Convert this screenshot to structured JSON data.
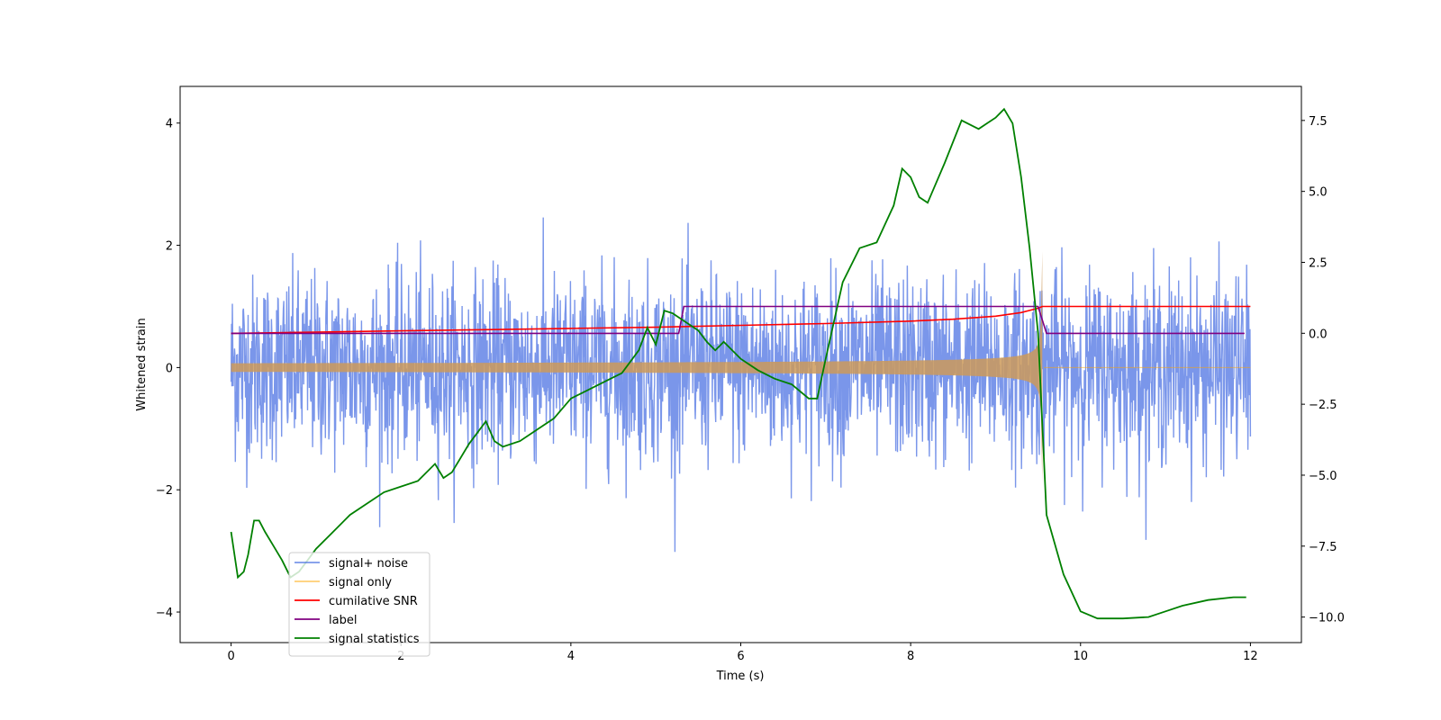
{
  "chart_data": {
    "type": "line",
    "title": "",
    "xlabel": "Time (s)",
    "ylabel": "Whitened strain",
    "y2label": "",
    "xlim": [
      -0.6,
      12.6
    ],
    "ylim": [
      -4.5,
      4.6
    ],
    "y2lim": [
      -10.9,
      8.7
    ],
    "x_ticks": [
      0,
      2,
      4,
      6,
      8,
      10,
      12
    ],
    "y_ticks": [
      -4,
      -2,
      0,
      2,
      4
    ],
    "y2_ticks": [
      -10.0,
      -7.5,
      -5.0,
      -2.5,
      0.0,
      2.5,
      5.0,
      7.5
    ],
    "y2_tick_labels": [
      "−10.0",
      "−7.5",
      "−5.0",
      "−2.5",
      "0.0",
      "2.5",
      "5.0",
      "7.5"
    ],
    "x_tick_labels": [
      "0",
      "2",
      "4",
      "6",
      "8",
      "10",
      "12"
    ],
    "y_tick_labels": [
      "−4",
      "−2",
      "0",
      "2",
      "4"
    ],
    "grid": false,
    "legend_position": "lower-left",
    "noise": {
      "std": 0.75,
      "x_start": 0,
      "x_end": 12
    },
    "chirp": {
      "t_merger": 9.55,
      "peak_amplitude": 1.9,
      "x_end": 12
    },
    "series": [
      {
        "name": "signal+ noise",
        "color": "#4169e1",
        "axis": "left"
      },
      {
        "name": "signal only",
        "color": "#ffa500",
        "axis": "left"
      },
      {
        "name": "cumilative SNR",
        "color": "#ff0000",
        "axis": "left",
        "x": [
          0,
          1,
          2,
          3,
          4,
          5,
          6,
          7,
          8,
          8.5,
          9,
          9.3,
          9.5,
          9.55,
          10,
          11,
          12
        ],
        "y": [
          0.56,
          0.58,
          0.6,
          0.62,
          0.64,
          0.66,
          0.69,
          0.72,
          0.76,
          0.79,
          0.84,
          0.9,
          0.97,
          1.0,
          1.0,
          1.0,
          1.0
        ]
      },
      {
        "name": "label",
        "color": "#800080",
        "axis": "left",
        "x": [
          0,
          5.27,
          5.33,
          9.5,
          9.6,
          11.93
        ],
        "y": [
          0.56,
          0.56,
          1.0,
          1.0,
          0.56,
          0.56
        ]
      },
      {
        "name": "signal statistics",
        "color": "#008000",
        "axis": "right",
        "x": [
          0,
          0.08,
          0.15,
          0.2,
          0.27,
          0.33,
          0.4,
          0.5,
          0.6,
          0.7,
          0.8,
          0.9,
          1.0,
          1.2,
          1.4,
          1.6,
          1.8,
          2.0,
          2.2,
          2.4,
          2.5,
          2.6,
          2.8,
          3.0,
          3.1,
          3.2,
          3.4,
          3.6,
          3.8,
          4.0,
          4.2,
          4.4,
          4.6,
          4.8,
          4.9,
          5.0,
          5.1,
          5.2,
          5.3,
          5.5,
          5.6,
          5.7,
          5.8,
          6.0,
          6.2,
          6.4,
          6.6,
          6.8,
          6.9,
          7.0,
          7.2,
          7.4,
          7.6,
          7.8,
          7.9,
          8.0,
          8.1,
          8.2,
          8.4,
          8.6,
          8.8,
          8.9,
          9.0,
          9.1,
          9.2,
          9.3,
          9.4,
          9.5,
          9.6,
          9.8,
          10.0,
          10.2,
          10.5,
          10.8,
          11.0,
          11.2,
          11.5,
          11.8,
          11.95
        ],
        "y": [
          -7.0,
          -8.6,
          -8.4,
          -7.8,
          -6.6,
          -6.6,
          -7.0,
          -7.5,
          -8.0,
          -8.6,
          -8.4,
          -8.0,
          -7.6,
          -7.0,
          -6.4,
          -6.0,
          -5.6,
          -5.4,
          -5.2,
          -4.6,
          -5.1,
          -4.9,
          -3.9,
          -3.1,
          -3.8,
          -4.0,
          -3.8,
          -3.4,
          -3.0,
          -2.3,
          -2.0,
          -1.7,
          -1.4,
          -0.6,
          0.2,
          -0.4,
          0.8,
          0.7,
          0.5,
          0.1,
          -0.3,
          -0.6,
          -0.3,
          -0.9,
          -1.3,
          -1.6,
          -1.8,
          -2.3,
          -2.3,
          -0.9,
          1.8,
          3.0,
          3.2,
          4.5,
          5.8,
          5.5,
          4.8,
          4.6,
          6.0,
          7.5,
          7.2,
          7.4,
          7.6,
          7.9,
          7.4,
          5.5,
          3.0,
          0.0,
          -6.4,
          -8.5,
          -9.8,
          -10.05,
          -10.05,
          -10.0,
          -9.8,
          -9.6,
          -9.4,
          -9.3,
          -9.3
        ]
      }
    ]
  }
}
